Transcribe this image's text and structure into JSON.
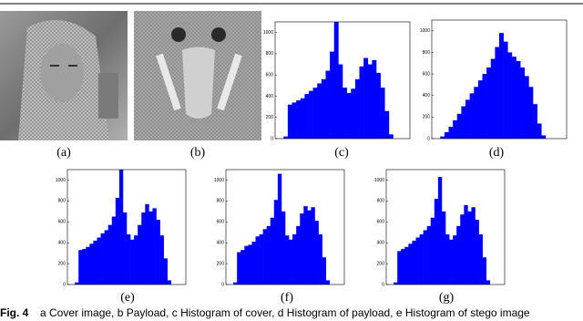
{
  "panels": [
    "(a)",
    "(b)",
    "(c)",
    "(d)",
    "(e)",
    "(f)",
    "(g)"
  ],
  "caption": {
    "label": "Fig. 4",
    "text": "a Cover image, b Payload, c Histogram of cover, d Histogram of payload, e Histogram of stego image"
  },
  "chart_data": [
    {
      "type": "histogram",
      "color": "#0000ff",
      "bins": [
        0,
        8,
        16,
        24,
        32,
        40,
        48,
        56,
        64,
        72,
        80,
        88,
        96,
        104,
        112,
        120,
        128,
        136,
        144,
        152,
        160,
        168,
        176,
        184,
        192,
        200,
        208,
        216,
        224,
        232,
        240,
        248,
        256
      ],
      "values": [
        0,
        0,
        20,
        320,
        340,
        360,
        380,
        420,
        450,
        480,
        520,
        560,
        640,
        820,
        1100,
        700,
        480,
        430,
        470,
        560,
        680,
        760,
        700,
        740,
        620,
        480,
        260,
        40,
        0,
        0,
        0,
        0
      ],
      "xlim": [
        0,
        256
      ],
      "ylim": [
        0,
        1100
      ],
      "yticks": [
        0,
        200,
        400,
        600,
        800,
        1000
      ]
    },
    {
      "type": "histogram",
      "color": "#0000ff",
      "bins": [
        0,
        8,
        16,
        24,
        32,
        40,
        48,
        56,
        64,
        72,
        80,
        88,
        96,
        104,
        112,
        120,
        128,
        136,
        144,
        152,
        160,
        168,
        176,
        184,
        192,
        200,
        208,
        216,
        224,
        232,
        240,
        248,
        256
      ],
      "values": [
        0,
        0,
        20,
        60,
        110,
        170,
        230,
        300,
        360,
        420,
        480,
        540,
        600,
        660,
        740,
        850,
        980,
        900,
        800,
        760,
        720,
        660,
        580,
        480,
        320,
        140,
        30,
        0,
        0,
        0,
        0,
        0
      ],
      "xlim": [
        0,
        256
      ],
      "ylim": [
        0,
        1100
      ],
      "yticks": [
        0,
        200,
        400,
        600,
        800,
        1000
      ]
    },
    {
      "type": "histogram",
      "color": "#0000ff",
      "bins": [
        0,
        8,
        16,
        24,
        32,
        40,
        48,
        56,
        64,
        72,
        80,
        88,
        96,
        104,
        112,
        120,
        128,
        136,
        144,
        152,
        160,
        168,
        176,
        184,
        192,
        200,
        208,
        216,
        224,
        232,
        240,
        248,
        256
      ],
      "values": [
        0,
        0,
        20,
        330,
        340,
        360,
        390,
        420,
        450,
        490,
        520,
        570,
        650,
        830,
        1100,
        690,
        480,
        430,
        470,
        570,
        690,
        770,
        700,
        730,
        620,
        470,
        250,
        40,
        0,
        0,
        0,
        0
      ],
      "xlim": [
        0,
        256
      ],
      "ylim": [
        0,
        1100
      ],
      "yticks": [
        0,
        200,
        400,
        600,
        800,
        1000
      ]
    },
    {
      "type": "histogram",
      "color": "#0000ff",
      "bins": [
        0,
        8,
        16,
        24,
        32,
        40,
        48,
        56,
        64,
        72,
        80,
        88,
        96,
        104,
        112,
        120,
        128,
        136,
        144,
        152,
        160,
        168,
        176,
        184,
        192,
        200,
        208,
        216,
        224,
        232,
        240,
        248,
        256
      ],
      "values": [
        0,
        0,
        20,
        310,
        330,
        370,
        380,
        410,
        460,
        480,
        530,
        560,
        640,
        810,
        1060,
        700,
        470,
        430,
        480,
        560,
        680,
        750,
        710,
        740,
        610,
        480,
        260,
        40,
        0,
        0,
        0,
        0
      ],
      "xlim": [
        0,
        256
      ],
      "ylim": [
        0,
        1100
      ],
      "yticks": [
        0,
        200,
        400,
        600,
        800,
        1000
      ]
    },
    {
      "type": "histogram",
      "color": "#0000ff",
      "bins": [
        0,
        8,
        16,
        24,
        32,
        40,
        48,
        56,
        64,
        72,
        80,
        88,
        96,
        104,
        112,
        120,
        128,
        136,
        144,
        152,
        160,
        168,
        176,
        184,
        192,
        200,
        208,
        216,
        224,
        232,
        240,
        248,
        256
      ],
      "values": [
        0,
        0,
        20,
        320,
        340,
        360,
        390,
        420,
        450,
        480,
        520,
        560,
        640,
        820,
        1030,
        700,
        480,
        430,
        470,
        560,
        670,
        760,
        700,
        740,
        620,
        480,
        260,
        40,
        0,
        0,
        0,
        0
      ],
      "xlim": [
        0,
        256
      ],
      "ylim": [
        0,
        1100
      ],
      "yticks": [
        0,
        200,
        400,
        600,
        800,
        1000
      ]
    }
  ]
}
